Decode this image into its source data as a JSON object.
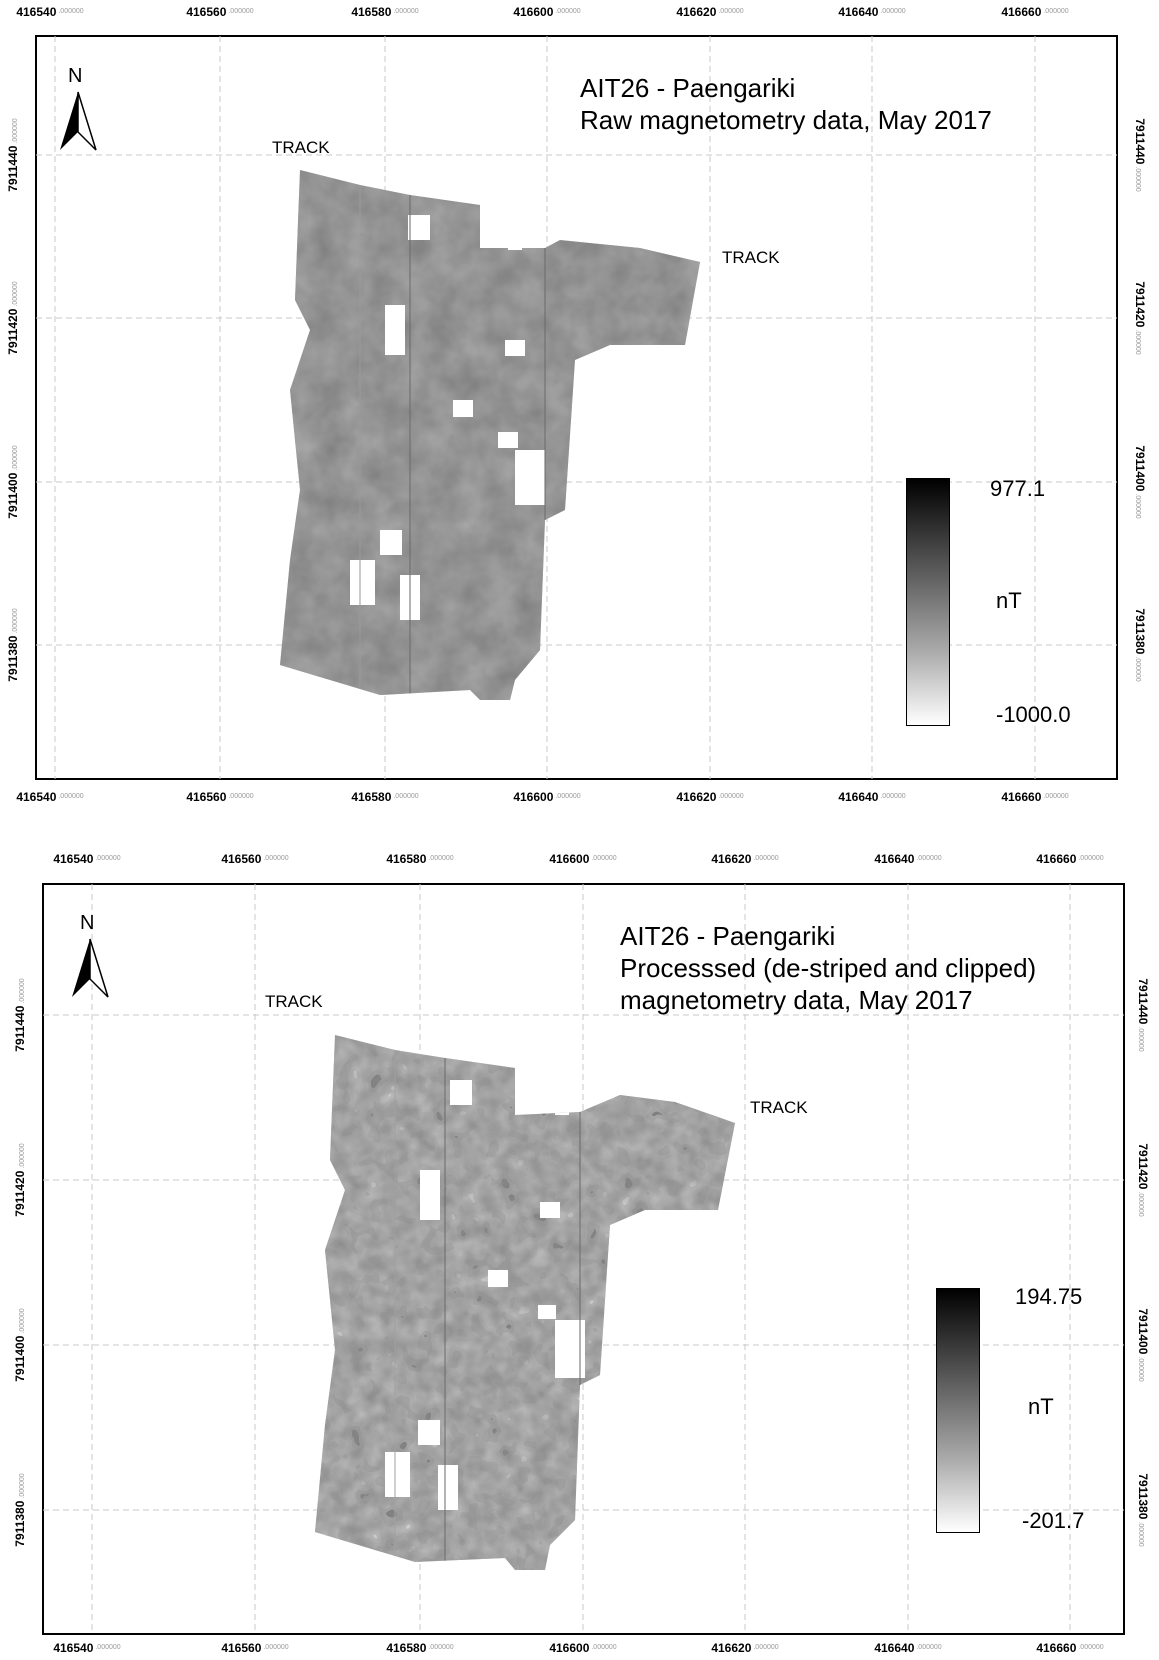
{
  "x_axis_ticks": [
    "416540",
    "416560",
    "416580",
    "416600",
    "416620",
    "416640",
    "416660"
  ],
  "y_axis_ticks": [
    "7911440",
    "7911420",
    "7911400",
    "7911380"
  ],
  "tick_decimals": ".000000",
  "north_label": "N",
  "panels": [
    {
      "title_lines": [
        "AIT26 - Paengariki",
        "Raw magnetometry data, May 2017"
      ],
      "track_labels": [
        "TRACK",
        "TRACK"
      ],
      "legend": {
        "max": "977.1",
        "unit": "nT",
        "min": "-1000.0"
      }
    },
    {
      "title_lines": [
        "AIT26 - Paengariki",
        "Processsed (de-striped and clipped)",
        "magnetometry data, May 2017"
      ],
      "track_labels": [
        "TRACK",
        "TRACK"
      ],
      "legend": {
        "max": "194.75",
        "unit": "nT",
        "min": "-201.7"
      }
    }
  ],
  "colors": {
    "frame": "#000000",
    "grid": "#c8c8c8",
    "raster_mid_raw": "#7d7d7d",
    "raster_mid_processed": "#8a8a8a"
  }
}
